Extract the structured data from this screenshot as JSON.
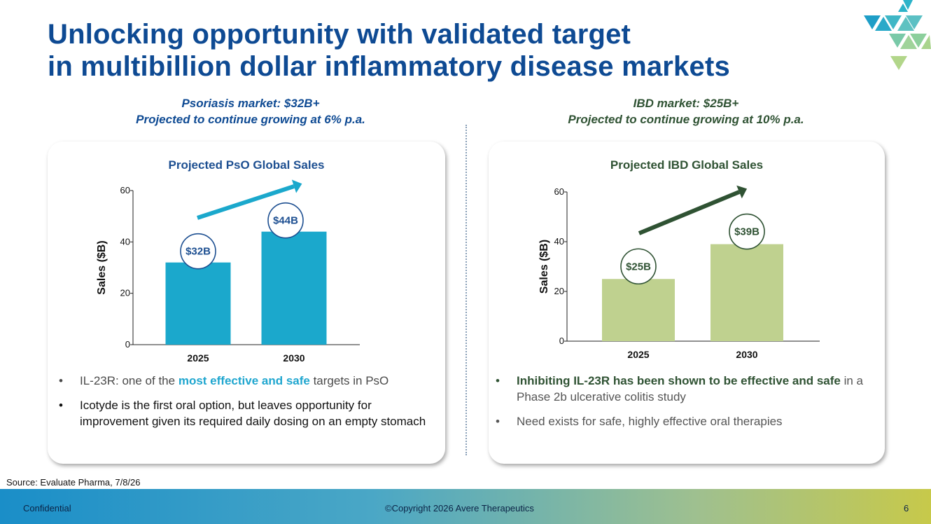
{
  "slide": {
    "title_line1": "Unlocking opportunity with validated target",
    "title_line2": "in multibillion dollar inflammatory disease markets",
    "source": "Source: Evaluate Pharma, 7/8/26",
    "footer_left": "Confidential",
    "footer_center": "©Copyright 2026 Avere Therapeutics",
    "page_number": "6"
  },
  "left_panel": {
    "subhead_line1": "Psoriasis market: $32B+",
    "subhead_line2": "Projected to continue growing at 6% p.a.",
    "bullets": [
      {
        "prefix": "IL-23R: one of the ",
        "highlight": "most effective and safe",
        "suffix": " targets in PsO"
      },
      {
        "text": "Icotyde is the first oral option, but leaves opportunity for improvement given its required daily dosing on an empty stomach"
      }
    ]
  },
  "right_panel": {
    "subhead_line1": "IBD market: $25B+",
    "subhead_line2": "Projected to continue growing at 10% p.a.",
    "bullets": [
      {
        "highlight": "Inhibiting IL-23R has been shown to be effective and safe",
        "suffix": " in a Phase 2b ulcerative colitis study"
      },
      {
        "text": "Need exists for safe, highly effective oral therapies"
      }
    ]
  },
  "colors": {
    "pso_bar": "#1ba8cc",
    "ibd_bar": "#bfd18f",
    "pso_accent": "#1d4f91",
    "ibd_accent": "#2f5233"
  },
  "chart_data": [
    {
      "type": "bar",
      "title": "Projected PsO Global Sales",
      "categories": [
        "2025",
        "2030"
      ],
      "values": [
        32,
        44
      ],
      "data_labels": [
        "$32B",
        "$44B"
      ],
      "ylabel": "Sales ($B)",
      "xlabel": "",
      "ylim": [
        0,
        60
      ],
      "yticks": [
        0,
        20,
        40,
        60
      ],
      "grid": false,
      "legend": "none"
    },
    {
      "type": "bar",
      "title": "Projected IBD Global Sales",
      "categories": [
        "2025",
        "2030"
      ],
      "values": [
        25,
        39
      ],
      "data_labels": [
        "$25B",
        "$39B"
      ],
      "ylabel": "Sales ($B)",
      "xlabel": "",
      "ylim": [
        0,
        60
      ],
      "yticks": [
        0,
        20,
        40,
        60
      ],
      "grid": false,
      "legend": "none"
    }
  ]
}
